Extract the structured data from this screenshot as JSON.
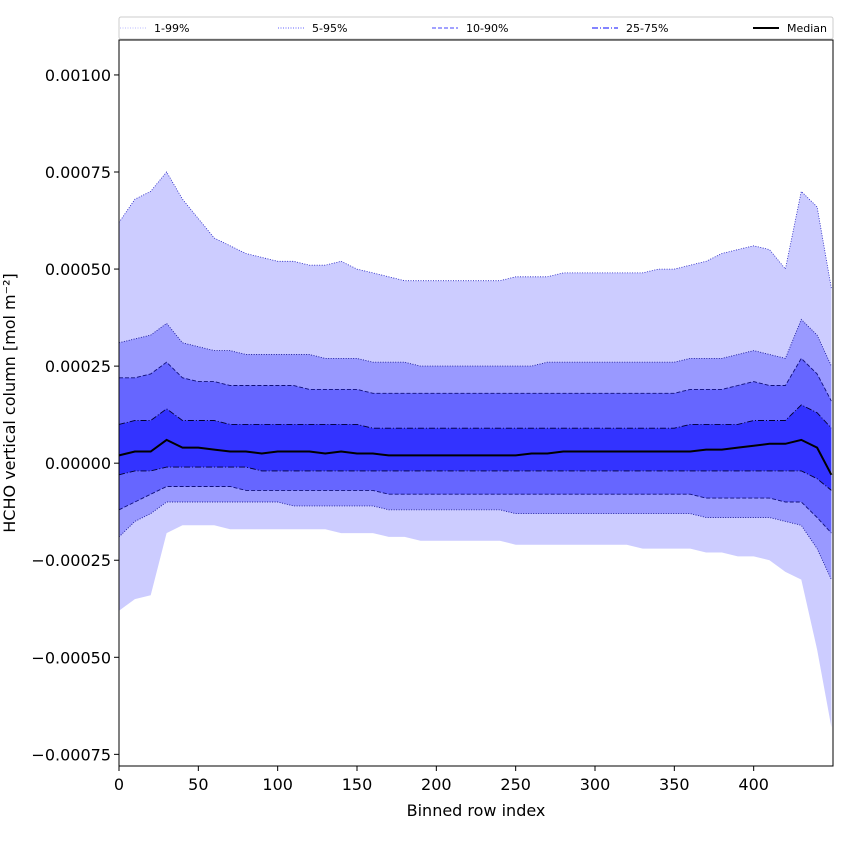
{
  "chart_data": {
    "type": "area",
    "title": "",
    "xlabel": "Binned row index",
    "ylabel": "HCHO vertical column [mol m⁻²]",
    "xlim": [
      0,
      450
    ],
    "ylim": [
      -0.00078,
      0.00109
    ],
    "xticks": [
      0,
      50,
      100,
      150,
      200,
      250,
      300,
      350,
      400
    ],
    "xtick_labels": [
      "0",
      "50",
      "100",
      "150",
      "200",
      "250",
      "300",
      "350",
      "400"
    ],
    "yticks": [
      -0.00075,
      -0.0005,
      -0.00025,
      0.0,
      0.00025,
      0.0005,
      0.00075,
      0.001
    ],
    "ytick_labels": [
      "−0.00075",
      "−0.00050",
      "−0.00025",
      "0.00000",
      "0.00025",
      "0.00050",
      "0.00075",
      "0.00100"
    ],
    "grid": false,
    "legend_position": "top",
    "legend": [
      {
        "label": "1-99%",
        "style": "dotted",
        "color": "#c8c8ff"
      },
      {
        "label": "5-95%",
        "style": "dotted",
        "color": "#8080ff"
      },
      {
        "label": "10-90%",
        "style": "dashed",
        "color": "#6a6aff"
      },
      {
        "label": "25-75%",
        "style": "dashdot",
        "color": "#3a3aff"
      },
      {
        "label": "Median",
        "style": "solid",
        "color": "#000000"
      }
    ],
    "x": [
      0,
      10,
      20,
      30,
      40,
      50,
      60,
      70,
      80,
      90,
      100,
      110,
      120,
      130,
      140,
      150,
      160,
      170,
      180,
      190,
      200,
      210,
      220,
      230,
      240,
      250,
      260,
      270,
      280,
      290,
      300,
      310,
      320,
      330,
      340,
      350,
      360,
      370,
      380,
      390,
      400,
      410,
      420,
      430,
      440,
      449
    ],
    "bands": [
      {
        "name": "1-99%",
        "color": "#ccccff",
        "upper": [
          0.00062,
          0.00068,
          0.0007,
          0.00075,
          0.00068,
          0.00063,
          0.00058,
          0.00056,
          0.00054,
          0.00053,
          0.00052,
          0.00052,
          0.00051,
          0.00051,
          0.00052,
          0.0005,
          0.00049,
          0.00048,
          0.00047,
          0.00047,
          0.00047,
          0.00047,
          0.00047,
          0.00047,
          0.00047,
          0.00048,
          0.00048,
          0.00048,
          0.00049,
          0.00049,
          0.00049,
          0.00049,
          0.00049,
          0.00049,
          0.0005,
          0.0005,
          0.00051,
          0.00052,
          0.00054,
          0.00055,
          0.00056,
          0.00055,
          0.0005,
          0.0007,
          0.00066,
          0.00045
        ],
        "lower": [
          -0.00038,
          -0.00035,
          -0.00034,
          -0.00018,
          -0.00016,
          -0.00016,
          -0.00016,
          -0.00017,
          -0.00017,
          -0.00017,
          -0.00017,
          -0.00017,
          -0.00017,
          -0.00017,
          -0.00018,
          -0.00018,
          -0.00018,
          -0.00019,
          -0.00019,
          -0.0002,
          -0.0002,
          -0.0002,
          -0.0002,
          -0.0002,
          -0.0002,
          -0.00021,
          -0.00021,
          -0.00021,
          -0.00021,
          -0.00021,
          -0.00021,
          -0.00021,
          -0.00021,
          -0.00022,
          -0.00022,
          -0.00022,
          -0.00022,
          -0.00023,
          -0.00023,
          -0.00024,
          -0.00024,
          -0.00025,
          -0.00028,
          -0.0003,
          -0.00048,
          -0.00068
        ]
      },
      {
        "name": "5-95%",
        "color": "#9999ff",
        "upper": [
          0.00031,
          0.00032,
          0.00033,
          0.00036,
          0.00031,
          0.0003,
          0.00029,
          0.00029,
          0.00028,
          0.00028,
          0.00028,
          0.00028,
          0.00028,
          0.00027,
          0.00027,
          0.00027,
          0.00026,
          0.00026,
          0.00026,
          0.00025,
          0.00025,
          0.00025,
          0.00025,
          0.00025,
          0.00025,
          0.00025,
          0.00025,
          0.00026,
          0.00026,
          0.00026,
          0.00026,
          0.00026,
          0.00026,
          0.00026,
          0.00026,
          0.00026,
          0.00027,
          0.00027,
          0.00027,
          0.00028,
          0.00029,
          0.00028,
          0.00027,
          0.00037,
          0.00033,
          0.00025
        ],
        "lower": [
          -0.00019,
          -0.00015,
          -0.00013,
          -0.0001,
          -0.0001,
          -0.0001,
          -0.0001,
          -0.0001,
          -0.0001,
          -0.0001,
          -0.0001,
          -0.00011,
          -0.00011,
          -0.00011,
          -0.00011,
          -0.00011,
          -0.00011,
          -0.00012,
          -0.00012,
          -0.00012,
          -0.00012,
          -0.00012,
          -0.00012,
          -0.00012,
          -0.00012,
          -0.00013,
          -0.00013,
          -0.00013,
          -0.00013,
          -0.00013,
          -0.00013,
          -0.00013,
          -0.00013,
          -0.00013,
          -0.00013,
          -0.00013,
          -0.00013,
          -0.00014,
          -0.00014,
          -0.00014,
          -0.00014,
          -0.00014,
          -0.00015,
          -0.00016,
          -0.00022,
          -0.0003
        ]
      },
      {
        "name": "10-90%",
        "color": "#6666ff",
        "upper": [
          0.00022,
          0.00022,
          0.00023,
          0.00026,
          0.00022,
          0.00021,
          0.00021,
          0.0002,
          0.0002,
          0.0002,
          0.0002,
          0.0002,
          0.00019,
          0.00019,
          0.00019,
          0.00019,
          0.00018,
          0.00018,
          0.00018,
          0.00018,
          0.00018,
          0.00018,
          0.00018,
          0.00018,
          0.00018,
          0.00018,
          0.00018,
          0.00018,
          0.00018,
          0.00018,
          0.00018,
          0.00018,
          0.00018,
          0.00018,
          0.00018,
          0.00018,
          0.00019,
          0.00019,
          0.00019,
          0.0002,
          0.00021,
          0.0002,
          0.0002,
          0.00027,
          0.00023,
          0.00016
        ],
        "lower": [
          -0.00012,
          -0.0001,
          -8e-05,
          -6e-05,
          -6e-05,
          -6e-05,
          -6e-05,
          -6e-05,
          -7e-05,
          -7e-05,
          -7e-05,
          -7e-05,
          -7e-05,
          -7e-05,
          -7e-05,
          -7e-05,
          -7e-05,
          -8e-05,
          -8e-05,
          -8e-05,
          -8e-05,
          -8e-05,
          -8e-05,
          -8e-05,
          -8e-05,
          -8e-05,
          -8e-05,
          -8e-05,
          -8e-05,
          -8e-05,
          -8e-05,
          -8e-05,
          -8e-05,
          -8e-05,
          -8e-05,
          -8e-05,
          -8e-05,
          -9e-05,
          -9e-05,
          -9e-05,
          -9e-05,
          -9e-05,
          -0.0001,
          -0.0001,
          -0.00014,
          -0.00018
        ]
      },
      {
        "name": "25-75%",
        "color": "#3333ff",
        "upper": [
          0.0001,
          0.00011,
          0.00011,
          0.00014,
          0.00011,
          0.00011,
          0.00011,
          0.0001,
          0.0001,
          0.0001,
          0.0001,
          0.0001,
          0.0001,
          0.0001,
          0.0001,
          0.0001,
          9e-05,
          9e-05,
          9e-05,
          9e-05,
          9e-05,
          9e-05,
          9e-05,
          9e-05,
          9e-05,
          9e-05,
          9e-05,
          9e-05,
          9e-05,
          9e-05,
          9e-05,
          9e-05,
          9e-05,
          9e-05,
          9e-05,
          9e-05,
          0.0001,
          0.0001,
          0.0001,
          0.0001,
          0.00011,
          0.00011,
          0.00011,
          0.00015,
          0.00013,
          9e-05
        ],
        "lower": [
          -3e-05,
          -2e-05,
          -2e-05,
          -1e-05,
          -1e-05,
          -1e-05,
          -1e-05,
          -1e-05,
          -1e-05,
          -2e-05,
          -2e-05,
          -2e-05,
          -2e-05,
          -2e-05,
          -2e-05,
          -2e-05,
          -2e-05,
          -2e-05,
          -2e-05,
          -2e-05,
          -2e-05,
          -2e-05,
          -2e-05,
          -2e-05,
          -2e-05,
          -2e-05,
          -2e-05,
          -2e-05,
          -2e-05,
          -2e-05,
          -2e-05,
          -2e-05,
          -2e-05,
          -2e-05,
          -2e-05,
          -2e-05,
          -2e-05,
          -2e-05,
          -2e-05,
          -2e-05,
          -2e-05,
          -2e-05,
          -2e-05,
          -2e-05,
          -4e-05,
          -7e-05
        ]
      }
    ],
    "median": {
      "name": "Median",
      "color": "#000000",
      "values": [
        2e-05,
        3e-05,
        3e-05,
        6e-05,
        4e-05,
        4e-05,
        3.5e-05,
        3e-05,
        3e-05,
        2.5e-05,
        3e-05,
        3e-05,
        3e-05,
        2.5e-05,
        3e-05,
        2.5e-05,
        2.5e-05,
        2e-05,
        2e-05,
        2e-05,
        2e-05,
        2e-05,
        2e-05,
        2e-05,
        2e-05,
        2e-05,
        2.5e-05,
        2.5e-05,
        3e-05,
        3e-05,
        3e-05,
        3e-05,
        3e-05,
        3e-05,
        3e-05,
        3e-05,
        3e-05,
        3.5e-05,
        3.5e-05,
        4e-05,
        4.5e-05,
        5e-05,
        5e-05,
        6e-05,
        4e-05,
        -3e-05
      ]
    }
  }
}
